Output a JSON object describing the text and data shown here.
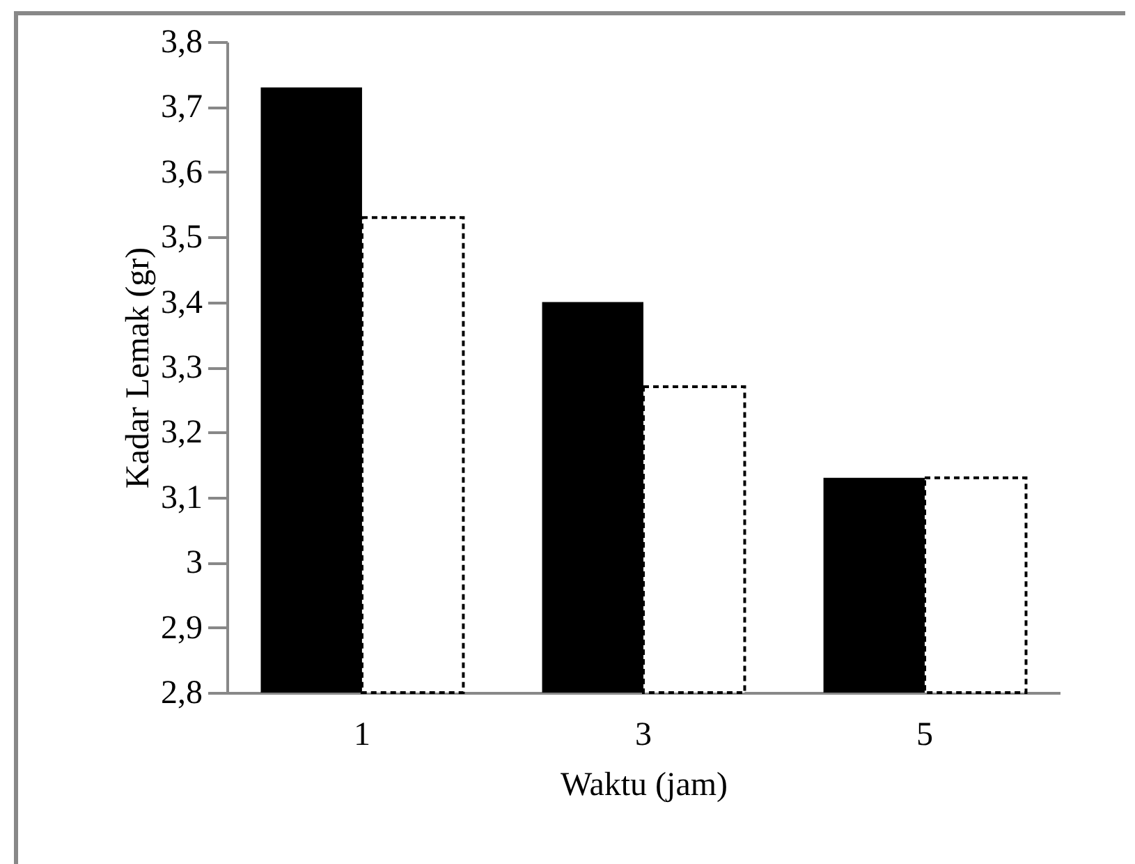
{
  "chart_data": {
    "type": "bar",
    "xlabel": "Waktu (jam)",
    "ylabel": "Kadar Lemak (gr)",
    "categories": [
      "1",
      "3",
      "5"
    ],
    "series": [
      {
        "color": "#000000",
        "values": [
          3.73,
          3.4,
          3.13
        ]
      },
      {
        "color": "#ffffff",
        "values": [
          3.53,
          3.27,
          3.13
        ]
      }
    ],
    "ylim": [
      2.8,
      3.8
    ],
    "yticks": [
      {
        "value": 2.8,
        "label": "2,8"
      },
      {
        "value": 2.9,
        "label": "2,9"
      },
      {
        "value": 3,
        "label": "3"
      },
      {
        "value": 3.1,
        "label": "3,1"
      },
      {
        "value": 3.2,
        "label": "3,2"
      },
      {
        "value": 3.3,
        "label": "3,3"
      },
      {
        "value": 3.4,
        "label": "3,4"
      },
      {
        "value": 3.5,
        "label": "3,5"
      },
      {
        "value": 3.6,
        "label": "3,6"
      },
      {
        "value": 3.7,
        "label": "3,7"
      },
      {
        "value": 3.8,
        "label": "3,8"
      }
    ],
    "grid": false,
    "legend": false
  }
}
